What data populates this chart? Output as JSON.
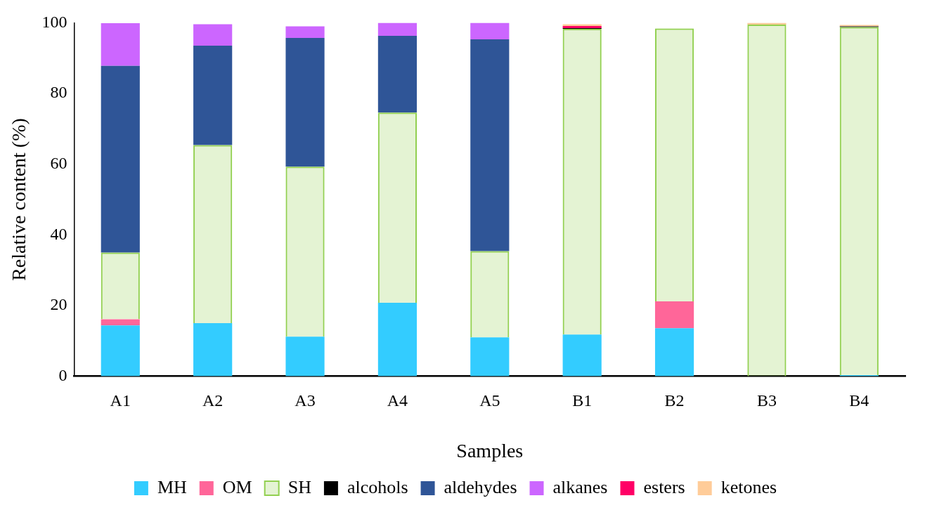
{
  "chart_data": {
    "type": "bar",
    "stacked": true,
    "xlabel": "Samples",
    "ylabel": "Relative content (%)",
    "categories": [
      "A1",
      "A2",
      "A3",
      "A4",
      "A5",
      "B1",
      "B2",
      "B3",
      "B4"
    ],
    "ylim": [
      0,
      100
    ],
    "yticks": [
      0,
      20,
      40,
      60,
      80,
      100
    ],
    "grid": false,
    "legend": "bottom",
    "series": [
      {
        "name": "MH",
        "color": "#33ccff",
        "values": [
          14.4,
          15,
          11.2,
          20.8,
          11,
          11.8,
          13.6,
          null,
          0.3
        ]
      },
      {
        "name": "OM",
        "color": "#ff6699",
        "values": [
          1.7,
          null,
          null,
          null,
          null,
          null,
          7.6,
          null,
          null
        ]
      },
      {
        "name": "SH",
        "color": "#92d050",
        "values": [
          18.9,
          50.4,
          48.1,
          53.8,
          24.4,
          86.5,
          77.2,
          99.5,
          98.5
        ]
      },
      {
        "name": "alcohols",
        "color": "#000000",
        "values": [
          null,
          null,
          null,
          null,
          null,
          0.2,
          null,
          null,
          0.2
        ]
      },
      {
        "name": "aldehydes",
        "color": "#2f5597",
        "values": [
          52.8,
          28.1,
          36.4,
          21.7,
          59.9,
          null,
          null,
          null,
          null
        ]
      },
      {
        "name": "alkanes",
        "color": "#cc66ff",
        "values": [
          12.1,
          6.1,
          3.3,
          3.7,
          4.7,
          null,
          null,
          null,
          null
        ]
      },
      {
        "name": "esters",
        "color": "#ff0066",
        "values": [
          null,
          null,
          null,
          null,
          null,
          0.6,
          null,
          null,
          null
        ]
      },
      {
        "name": "ketones",
        "color": "#ffcc99",
        "values": [
          null,
          null,
          null,
          null,
          null,
          0.5,
          null,
          0.5,
          0.4
        ]
      }
    ]
  }
}
